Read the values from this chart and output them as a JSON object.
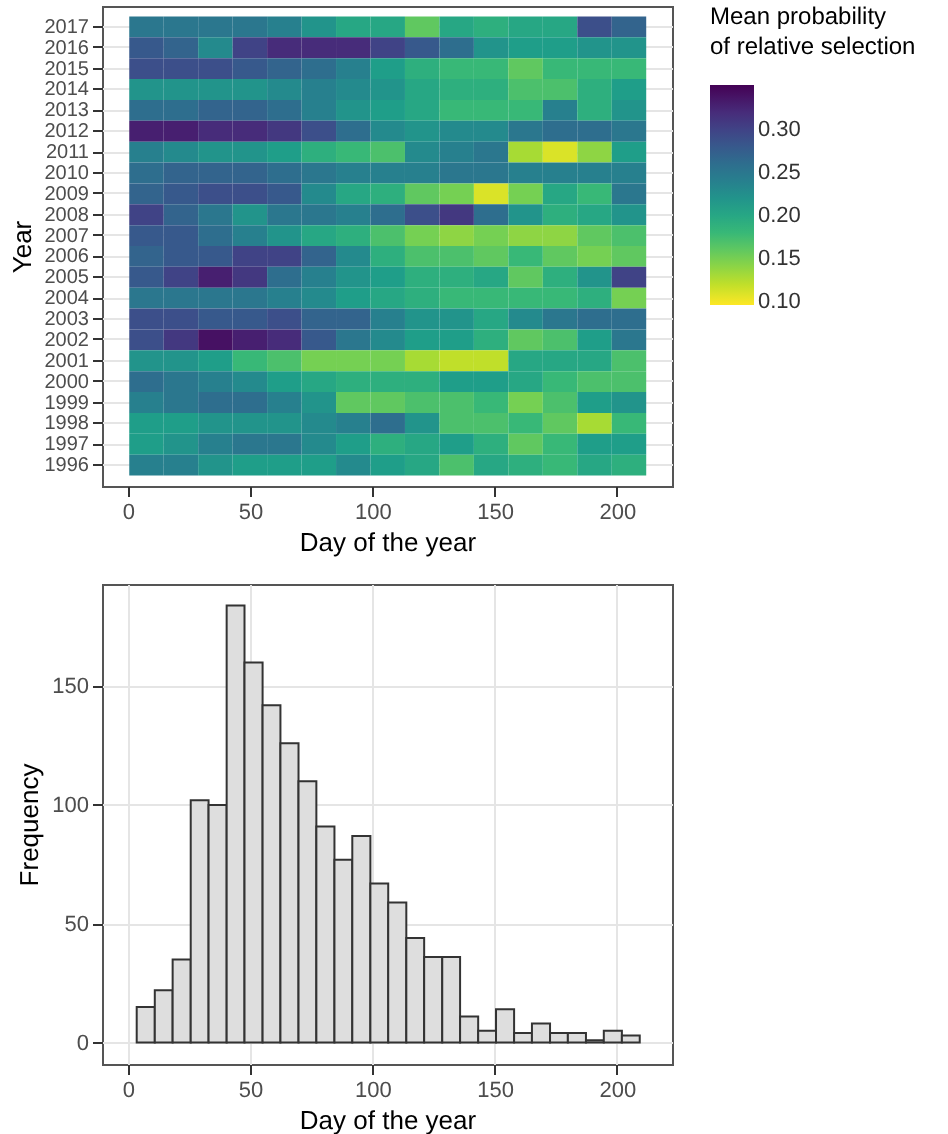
{
  "chart_data": [
    {
      "type": "heatmap",
      "xlabel": "Day of the year",
      "ylabel": "Year",
      "legend_title": "Mean probability\nof relative selection",
      "x": [
        7.6,
        21.7,
        35.8,
        49.9,
        64.0,
        78.1,
        92.2,
        106.3,
        120.4,
        134.5,
        148.6,
        162.7,
        176.8,
        190.9,
        205.0
      ],
      "xlim": [
        -10.6,
        222.6
      ],
      "xticks": [
        0,
        50,
        100,
        150,
        200
      ],
      "y_categories": [
        "2017",
        "2016",
        "2015",
        "2014",
        "2013",
        "2012",
        "2011",
        "2010",
        "2009",
        "2008",
        "2007",
        "2006",
        "2005",
        "2004",
        "2003",
        "2002",
        "2001",
        "2000",
        "1999",
        "1998",
        "1997",
        "1996"
      ],
      "cells": [
        [
          0.25,
          0.25,
          0.25,
          0.25,
          0.24,
          0.22,
          0.2,
          0.2,
          0.16,
          0.2,
          0.19,
          0.2,
          0.2,
          0.29,
          0.27
        ],
        [
          0.28,
          0.27,
          0.23,
          0.3,
          0.32,
          0.32,
          0.32,
          0.3,
          0.28,
          0.26,
          0.22,
          0.21,
          0.21,
          0.22,
          0.22
        ],
        [
          0.29,
          0.29,
          0.29,
          0.28,
          0.27,
          0.26,
          0.24,
          0.21,
          0.19,
          0.18,
          0.18,
          0.16,
          0.18,
          0.18,
          0.18
        ],
        [
          0.22,
          0.22,
          0.22,
          0.22,
          0.23,
          0.24,
          0.23,
          0.22,
          0.2,
          0.19,
          0.19,
          0.17,
          0.17,
          0.19,
          0.21
        ],
        [
          0.26,
          0.26,
          0.27,
          0.27,
          0.26,
          0.24,
          0.22,
          0.21,
          0.2,
          0.18,
          0.18,
          0.18,
          0.24,
          0.19,
          0.22
        ],
        [
          0.33,
          0.33,
          0.32,
          0.32,
          0.31,
          0.29,
          0.26,
          0.23,
          0.22,
          0.23,
          0.23,
          0.25,
          0.26,
          0.26,
          0.25
        ],
        [
          0.24,
          0.23,
          0.22,
          0.22,
          0.21,
          0.19,
          0.18,
          0.17,
          0.23,
          0.24,
          0.25,
          0.13,
          0.11,
          0.14,
          0.21
        ],
        [
          0.26,
          0.27,
          0.27,
          0.27,
          0.26,
          0.25,
          0.24,
          0.24,
          0.24,
          0.25,
          0.25,
          0.24,
          0.24,
          0.24,
          0.24
        ],
        [
          0.27,
          0.28,
          0.29,
          0.29,
          0.28,
          0.23,
          0.2,
          0.19,
          0.16,
          0.15,
          0.11,
          0.15,
          0.2,
          0.18,
          0.25
        ],
        [
          0.3,
          0.27,
          0.25,
          0.22,
          0.25,
          0.25,
          0.24,
          0.26,
          0.29,
          0.31,
          0.26,
          0.22,
          0.19,
          0.2,
          0.22
        ],
        [
          0.28,
          0.28,
          0.26,
          0.24,
          0.22,
          0.2,
          0.19,
          0.17,
          0.15,
          0.14,
          0.15,
          0.14,
          0.14,
          0.16,
          0.17
        ],
        [
          0.27,
          0.28,
          0.28,
          0.3,
          0.3,
          0.27,
          0.23,
          0.19,
          0.17,
          0.17,
          0.16,
          0.18,
          0.16,
          0.15,
          0.16
        ],
        [
          0.28,
          0.3,
          0.33,
          0.31,
          0.26,
          0.24,
          0.22,
          0.21,
          0.19,
          0.19,
          0.2,
          0.16,
          0.19,
          0.22,
          0.3
        ],
        [
          0.25,
          0.25,
          0.25,
          0.25,
          0.24,
          0.23,
          0.21,
          0.2,
          0.19,
          0.18,
          0.18,
          0.18,
          0.18,
          0.19,
          0.15
        ],
        [
          0.29,
          0.29,
          0.28,
          0.28,
          0.29,
          0.27,
          0.27,
          0.24,
          0.22,
          0.22,
          0.2,
          0.23,
          0.25,
          0.26,
          0.26
        ],
        [
          0.29,
          0.31,
          0.34,
          0.33,
          0.32,
          0.28,
          0.25,
          0.23,
          0.21,
          0.21,
          0.19,
          0.16,
          0.17,
          0.21,
          0.25
        ],
        [
          0.22,
          0.22,
          0.21,
          0.18,
          0.17,
          0.15,
          0.15,
          0.15,
          0.13,
          0.12,
          0.12,
          0.2,
          0.2,
          0.2,
          0.17
        ],
        [
          0.26,
          0.25,
          0.24,
          0.23,
          0.21,
          0.2,
          0.19,
          0.19,
          0.19,
          0.21,
          0.21,
          0.2,
          0.18,
          0.17,
          0.17
        ],
        [
          0.24,
          0.25,
          0.26,
          0.26,
          0.24,
          0.22,
          0.16,
          0.16,
          0.17,
          0.17,
          0.18,
          0.15,
          0.17,
          0.21,
          0.22
        ],
        [
          0.21,
          0.21,
          0.22,
          0.22,
          0.22,
          0.23,
          0.24,
          0.26,
          0.22,
          0.17,
          0.17,
          0.18,
          0.16,
          0.13,
          0.18
        ],
        [
          0.21,
          0.22,
          0.24,
          0.25,
          0.25,
          0.23,
          0.21,
          0.19,
          0.2,
          0.21,
          0.19,
          0.16,
          0.18,
          0.21,
          0.21
        ],
        [
          0.24,
          0.24,
          0.22,
          0.21,
          0.21,
          0.21,
          0.23,
          0.21,
          0.2,
          0.17,
          0.2,
          0.19,
          0.18,
          0.2,
          0.19
        ]
      ],
      "clim": [
        0.096,
        0.352
      ],
      "cticks": [
        {
          "value": 0.1,
          "label": "0.10"
        },
        {
          "value": 0.15,
          "label": "0.15"
        },
        {
          "value": 0.2,
          "label": "0.20"
        },
        {
          "value": 0.25,
          "label": "0.25"
        },
        {
          "value": 0.3,
          "label": "0.30"
        }
      ],
      "grid": "y"
    },
    {
      "type": "histogram",
      "xlabel": "Day of the year",
      "ylabel": "Frequency",
      "color": "#dedede",
      "bins": [
        3.6,
        11.0,
        18.3,
        25.7,
        33.0,
        40.4,
        47.7,
        55.1,
        62.4,
        69.8,
        77.1,
        84.5,
        91.8,
        99.2,
        106.5,
        113.9,
        121.2,
        128.6,
        135.9,
        143.3,
        150.6,
        158.0,
        165.3,
        172.7,
        180.0,
        187.4,
        194.7,
        202.1,
        209.4
      ],
      "values": [
        15,
        22,
        35,
        102,
        100,
        184,
        160,
        142,
        126,
        110,
        91,
        77,
        87,
        67,
        59,
        44,
        36,
        36,
        11,
        5,
        14,
        4,
        8,
        4,
        4,
        1,
        5,
        3
      ],
      "xlim": [
        -10.6,
        222.6
      ],
      "xticks": [
        0,
        50,
        100,
        150,
        200
      ],
      "ylim": [
        -9,
        193
      ],
      "yticks": [
        0,
        50,
        100,
        150
      ],
      "grid": true
    }
  ]
}
